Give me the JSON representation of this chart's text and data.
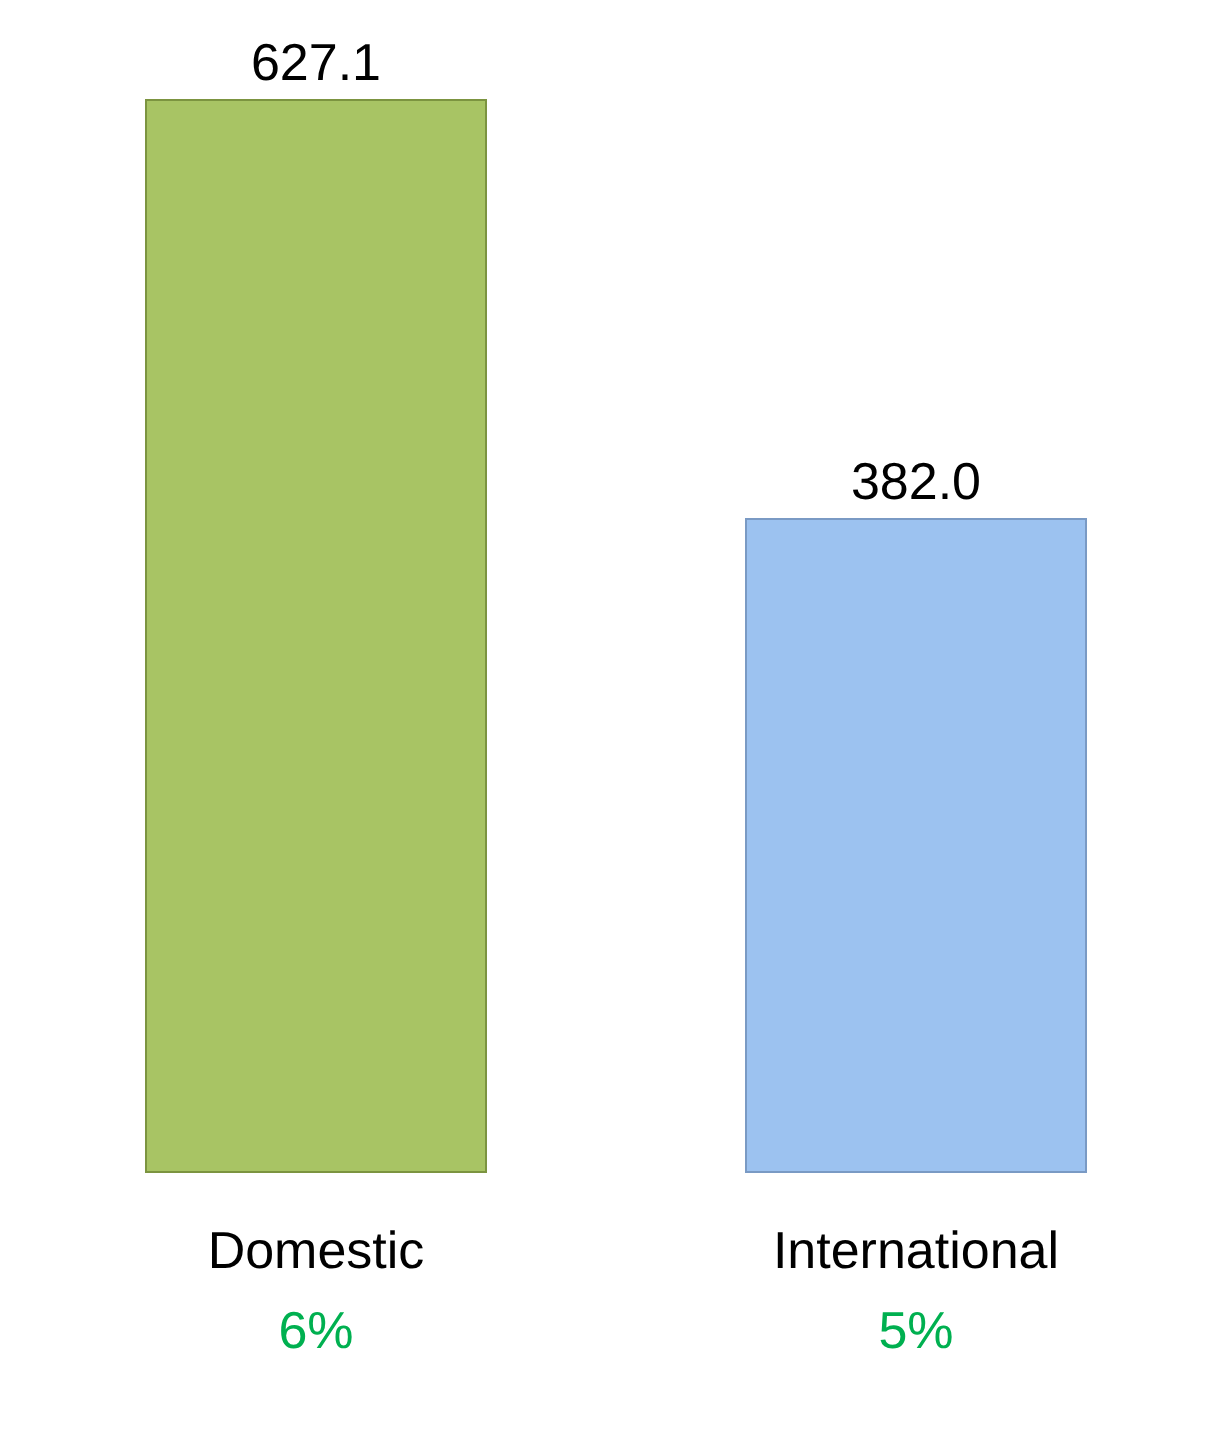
{
  "chart_data": {
    "type": "bar",
    "categories": [
      "Domestic",
      "International"
    ],
    "values": [
      627.1,
      382.0
    ],
    "colors": [
      "#a8c464",
      "#9cc2f0"
    ],
    "value_labels": [
      "627.1",
      "382.0"
    ],
    "annotations": [
      "6%",
      "5%"
    ],
    "grid": false,
    "legend": false
  }
}
